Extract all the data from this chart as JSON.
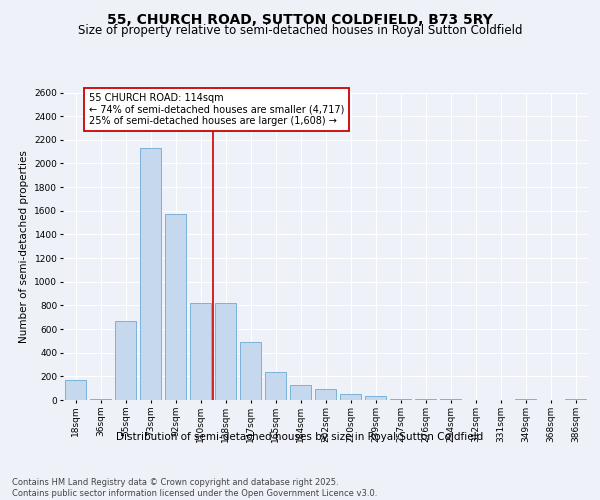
{
  "title": "55, CHURCH ROAD, SUTTON COLDFIELD, B73 5RY",
  "subtitle": "Size of property relative to semi-detached houses in Royal Sutton Coldfield",
  "xlabel": "Distribution of semi-detached houses by size in Royal Sutton Coldfield",
  "ylabel": "Number of semi-detached properties",
  "categories": [
    "18sqm",
    "36sqm",
    "55sqm",
    "73sqm",
    "92sqm",
    "110sqm",
    "128sqm",
    "147sqm",
    "165sqm",
    "184sqm",
    "202sqm",
    "220sqm",
    "239sqm",
    "257sqm",
    "276sqm",
    "294sqm",
    "312sqm",
    "331sqm",
    "349sqm",
    "368sqm",
    "386sqm"
  ],
  "values": [
    170,
    10,
    670,
    2130,
    1570,
    820,
    820,
    490,
    240,
    130,
    90,
    50,
    30,
    10,
    5,
    5,
    3,
    2,
    5,
    2,
    5
  ],
  "bar_color": "#c5d8ed",
  "bar_edge_color": "#6aaad4",
  "highlight_line_index": 6,
  "highlight_line_color": "#cc0000",
  "annotation_text": "55 CHURCH ROAD: 114sqm\n← 74% of semi-detached houses are smaller (4,717)\n25% of semi-detached houses are larger (1,608) →",
  "annotation_box_color": "#cc0000",
  "ylim": [
    0,
    2600
  ],
  "yticks": [
    0,
    200,
    400,
    600,
    800,
    1000,
    1200,
    1400,
    1600,
    1800,
    2000,
    2200,
    2400,
    2600
  ],
  "footer": "Contains HM Land Registry data © Crown copyright and database right 2025.\nContains public sector information licensed under the Open Government Licence v3.0.",
  "bg_color": "#eef2f8",
  "plot_bg_color": "#eef2f8",
  "grid_color": "#ffffff",
  "title_fontsize": 10,
  "subtitle_fontsize": 8.5,
  "axis_label_fontsize": 7.5,
  "tick_fontsize": 6.5,
  "annotation_fontsize": 7,
  "footer_fontsize": 6
}
